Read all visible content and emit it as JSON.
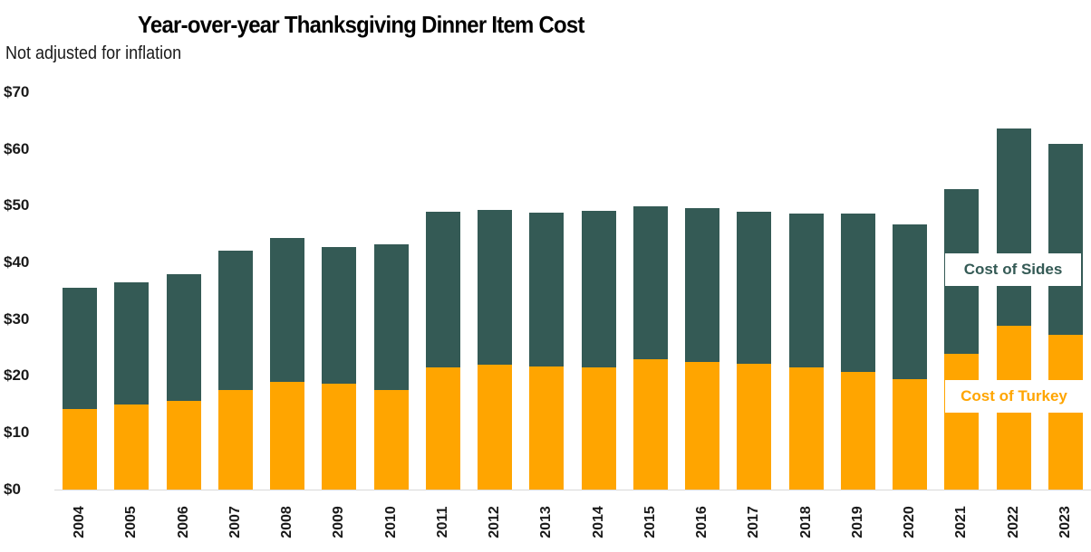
{
  "title": "Year-over-year Thanksgiving Dinner Item Cost",
  "subtitle": "Not adjusted for inflation",
  "colors": {
    "sides": "#345a55",
    "turkey": "#ffa500",
    "baseline": "#d9d9d9"
  },
  "y_ticks": [
    "$70",
    "$60",
    "$50",
    "$40",
    "$30",
    "$20",
    "$10",
    "$0"
  ],
  "legend": {
    "sides": "Cost of Sides",
    "turkey": "Cost of Turkey"
  },
  "chart_data": {
    "type": "bar",
    "stacked": true,
    "title": "Year-over-year Thanksgiving Dinner Item Cost",
    "subtitle": "Not adjusted for inflation",
    "xlabel": "",
    "ylabel": "",
    "ylim": [
      0,
      70
    ],
    "y_tick_values": [
      0,
      10,
      20,
      30,
      40,
      50,
      60,
      70
    ],
    "y_tick_format": "$",
    "grid": false,
    "legend_position": "inline-right",
    "categories": [
      "2004",
      "2005",
      "2006",
      "2007",
      "2008",
      "2009",
      "2010",
      "2011",
      "2012",
      "2013",
      "2014",
      "2015",
      "2016",
      "2017",
      "2018",
      "2019",
      "2020",
      "2021",
      "2022",
      "2023"
    ],
    "series": [
      {
        "name": "Cost of Turkey",
        "color": "#ffa500",
        "values": [
          14.2,
          15.0,
          15.6,
          17.5,
          19.0,
          18.7,
          17.5,
          21.5,
          22.0,
          21.7,
          21.5,
          22.9,
          22.5,
          22.2,
          21.5,
          20.7,
          19.4,
          23.9,
          28.9,
          27.3
        ]
      },
      {
        "name": "Cost of Sides",
        "color": "#345a55",
        "values": [
          21.4,
          21.5,
          22.4,
          24.6,
          25.3,
          24.0,
          25.7,
          27.5,
          27.3,
          27.1,
          27.7,
          27.0,
          27.1,
          26.8,
          27.1,
          27.9,
          27.3,
          29.1,
          34.8,
          33.6
        ]
      }
    ],
    "totals": [
      35.6,
      36.5,
      38.0,
      42.1,
      44.3,
      42.7,
      43.2,
      49.0,
      49.3,
      48.8,
      49.2,
      49.9,
      49.6,
      49.0,
      48.6,
      48.6,
      46.7,
      53.0,
      63.7,
      60.9
    ]
  }
}
